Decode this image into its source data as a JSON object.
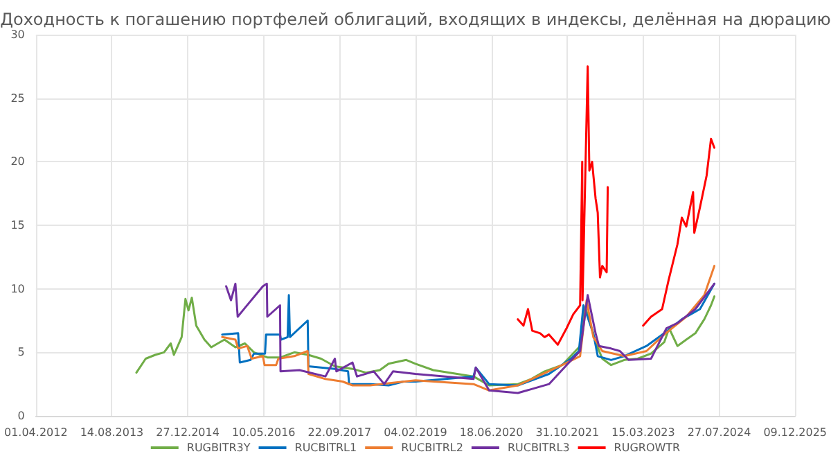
{
  "chart_data": {
    "type": "line",
    "title": "Доходность к погашению портфелей облигаций, входящих в индексы, делённая на дюрацию",
    "xlim": [
      "2012-04-01",
      "2025-12-09"
    ],
    "xticks": [
      {
        "value": "2012-04-01",
        "label": "01.04.2012"
      },
      {
        "value": "2013-08-14",
        "label": "14.08.2013"
      },
      {
        "value": "2014-12-27",
        "label": "27.12.2014"
      },
      {
        "value": "2016-05-10",
        "label": "10.05.2016"
      },
      {
        "value": "2017-09-22",
        "label": "22.09.2017"
      },
      {
        "value": "2019-02-04",
        "label": "04.02.2019"
      },
      {
        "value": "2020-06-18",
        "label": "18.06.2020"
      },
      {
        "value": "2021-10-31",
        "label": "31.10.2021"
      },
      {
        "value": "2023-03-15",
        "label": "15.03.2023"
      },
      {
        "value": "2024-07-27",
        "label": "27.07.2024"
      },
      {
        "value": "2025-12-09",
        "label": "09.12.2025"
      }
    ],
    "ylim": [
      0,
      30
    ],
    "yticks": [
      0,
      5,
      10,
      15,
      20,
      25,
      30
    ],
    "grid": true,
    "legend": "bottom",
    "marker": "none",
    "line_style": "solid",
    "series": [
      {
        "name": "RUGBITR3Y",
        "color": "#70ad47",
        "x": [
          "2014-01-23",
          "2014-03-25",
          "2014-05-27",
          "2014-07-24",
          "2014-09-06",
          "2014-09-27",
          "2014-11-17",
          "2014-12-12",
          "2015-01-01",
          "2015-01-23",
          "2015-02-21",
          "2015-04-16",
          "2015-05-31",
          "2015-07-13",
          "2015-08-26",
          "2015-11-06",
          "2016-01-08",
          "2016-03-07",
          "2016-06-03",
          "2016-08-29",
          "2016-11-28",
          "2017-02-28",
          "2017-05-23",
          "2017-08-22",
          "2017-12-16",
          "2018-03-14",
          "2018-06-14",
          "2018-08-11",
          "2018-12-05",
          "2019-02-04",
          "2019-06-01",
          "2020-02-21",
          "2020-06-03",
          "2020-12-09",
          "2021-03-07",
          "2021-06-03",
          "2021-09-27",
          "2021-12-23",
          "2022-01-23",
          "2022-02-14",
          "2022-02-28",
          "2022-03-29",
          "2022-05-05",
          "2022-06-18",
          "2022-08-15",
          "2022-11-10",
          "2023-02-06",
          "2023-05-05",
          "2023-07-31",
          "2023-09-01",
          "2023-10-26",
          "2023-12-23",
          "2024-02-21",
          "2024-04-20",
          "2024-06-03",
          "2024-06-25"
        ],
        "values": [
          3.4,
          4.5,
          4.8,
          5.0,
          5.7,
          4.8,
          6.2,
          9.2,
          8.3,
          9.3,
          7.1,
          6.0,
          5.4,
          5.7,
          6.0,
          5.4,
          5.7,
          5.0,
          4.6,
          4.6,
          5.0,
          4.8,
          4.5,
          3.9,
          3.7,
          3.4,
          3.6,
          4.1,
          4.4,
          4.1,
          3.6,
          3.1,
          2.4,
          2.5,
          2.9,
          3.5,
          4.0,
          5.1,
          5.5,
          7.8,
          8.5,
          7.3,
          5.8,
          4.5,
          4.0,
          4.4,
          4.5,
          4.9,
          5.8,
          6.9,
          5.5,
          6.0,
          6.5,
          7.6,
          8.7,
          9.4
        ]
      },
      {
        "name": "RUCBITRL1",
        "color": "#0070c0",
        "x": [
          "2015-08-11",
          "2015-11-24",
          "2015-12-05",
          "2016-02-14",
          "2016-03-07",
          "2016-05-19",
          "2016-05-26",
          "2016-08-26",
          "2016-09-01",
          "2016-10-15",
          "2016-10-23",
          "2016-10-30",
          "2017-02-24",
          "2017-03-01",
          "2017-08-22",
          "2017-11-17",
          "2017-11-24",
          "2018-04-16",
          "2018-08-11",
          "2018-11-17",
          "2019-02-04",
          "2020-02-21",
          "2020-03-07",
          "2020-06-03",
          "2020-12-09",
          "2021-07-02",
          "2021-11-24",
          "2022-01-15",
          "2022-02-14",
          "2022-04-20",
          "2022-05-19",
          "2022-08-15",
          "2022-11-10",
          "2023-04-05",
          "2023-07-31",
          "2023-11-24",
          "2024-03-22",
          "2024-06-25"
        ],
        "values": [
          6.4,
          6.5,
          4.2,
          4.4,
          4.9,
          4.9,
          6.4,
          6.4,
          6.0,
          6.2,
          9.5,
          6.2,
          7.5,
          3.9,
          3.7,
          3.5,
          2.5,
          2.5,
          2.4,
          2.7,
          2.7,
          3.1,
          3.8,
          2.5,
          2.4,
          3.3,
          4.5,
          5.1,
          8.7,
          6.5,
          4.7,
          4.4,
          4.7,
          5.5,
          6.5,
          7.6,
          8.4,
          10.4
        ]
      },
      {
        "name": "RUCBITRL2",
        "color": "#ed7d31",
        "x": [
          "2015-08-11",
          "2015-11-06",
          "2015-11-24",
          "2016-01-23",
          "2016-02-21",
          "2016-05-05",
          "2016-05-16",
          "2016-07-31",
          "2016-08-15",
          "2016-11-28",
          "2017-02-24",
          "2017-03-01",
          "2017-06-21",
          "2017-10-12",
          "2017-12-16",
          "2018-04-12",
          "2018-09-09",
          "2019-02-04",
          "2020-02-21",
          "2020-06-03",
          "2020-12-09",
          "2021-09-27",
          "2022-01-23",
          "2022-03-07",
          "2022-04-20",
          "2022-06-18",
          "2022-11-10",
          "2023-04-05",
          "2023-07-31",
          "2023-12-23",
          "2024-04-20",
          "2024-06-25"
        ],
        "values": [
          6.2,
          6.0,
          5.3,
          5.5,
          4.5,
          4.7,
          4.0,
          4.0,
          4.5,
          4.7,
          5.1,
          3.3,
          2.9,
          2.7,
          2.4,
          2.4,
          2.6,
          2.8,
          2.5,
          2.0,
          2.4,
          4.0,
          4.7,
          9.1,
          6.2,
          5.1,
          4.7,
          5.1,
          6.4,
          7.8,
          9.5,
          11.8
        ]
      },
      {
        "name": "RUCBITRL3",
        "color": "#7030a0",
        "x": [
          "2015-09-06",
          "2015-10-08",
          "2015-11-06",
          "2015-11-21",
          "2016-01-08",
          "2016-05-05",
          "2016-05-31",
          "2016-06-03",
          "2016-08-26",
          "2016-08-29",
          "2017-01-01",
          "2017-06-21",
          "2017-08-22",
          "2017-09-01",
          "2017-12-16",
          "2018-01-15",
          "2018-05-05",
          "2018-07-13",
          "2018-09-09",
          "2019-02-04",
          "2020-02-21",
          "2020-03-07",
          "2020-06-03",
          "2020-12-09",
          "2021-07-02",
          "2021-10-26",
          "2022-01-23",
          "2022-03-14",
          "2022-05-05",
          "2022-05-27",
          "2022-08-15",
          "2022-10-12",
          "2022-12-09",
          "2023-05-05",
          "2023-08-15",
          "2023-10-26",
          "2024-02-21",
          "2024-06-25"
        ],
        "values": [
          10.2,
          9.1,
          10.4,
          7.8,
          8.5,
          10.2,
          10.4,
          7.8,
          8.7,
          3.5,
          3.6,
          3.1,
          4.5,
          3.5,
          4.2,
          3.1,
          3.5,
          2.5,
          3.5,
          3.3,
          2.9,
          3.8,
          2.0,
          1.8,
          2.5,
          4.0,
          5.1,
          9.5,
          6.5,
          5.5,
          5.3,
          5.1,
          4.4,
          4.5,
          6.9,
          7.3,
          8.4,
          10.4
        ]
      },
      {
        "name": "RUGROWTR",
        "color": "#ff0000",
        "x": [
          "2020-12-09",
          "2021-01-15",
          "2021-02-14",
          "2021-03-14",
          "2021-05-05",
          "2021-06-03",
          "2021-07-02",
          "2021-08-29",
          "2021-10-26",
          "2021-12-09",
          "2022-01-23",
          "2022-02-06",
          "2022-02-08",
          "2022-03-14",
          "2022-03-25",
          "2022-04-12",
          "2022-05-05",
          "2022-05-19",
          "2022-06-03",
          "2022-06-18",
          "2022-07-17",
          "2022-07-24",
          "2022-11-01",
          "2023-03-14",
          "2023-05-05",
          "2023-07-17",
          "2023-08-29",
          "2023-10-26",
          "2023-11-24",
          "2023-12-23",
          "2024-02-06",
          "2024-02-14",
          "2024-03-22",
          "2024-05-05",
          "2024-06-03",
          "2024-06-25"
        ],
        "values": [
          7.6,
          7.1,
          8.4,
          6.7,
          6.5,
          6.2,
          6.4,
          5.6,
          6.9,
          8.0,
          8.7,
          20.0,
          9.1,
          27.5,
          19.3,
          20.0,
          17.1,
          16.0,
          10.9,
          11.8,
          11.3,
          18.0,
          null,
          7.1,
          7.8,
          8.4,
          10.7,
          13.5,
          15.6,
          14.9,
          17.6,
          14.4,
          16.4,
          18.9,
          21.8,
          21.1
        ]
      }
    ]
  }
}
